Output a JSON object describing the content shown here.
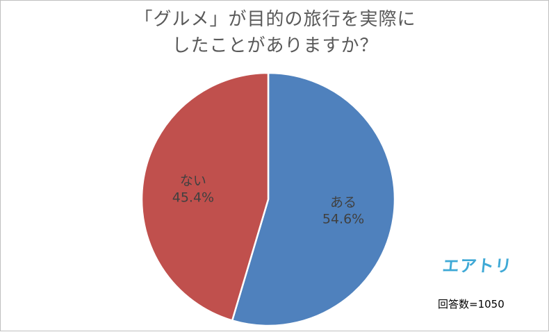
{
  "chart_data": {
    "type": "pie",
    "title_lines": [
      "「グルメ」が目的の旅行を実際に",
      "したことがありますか？"
    ],
    "slices": [
      {
        "name": "ある",
        "value": 54.6,
        "label": "54.6%",
        "color": "#4f81bd"
      },
      {
        "name": "ない",
        "value": 45.4,
        "label": "45.4%",
        "color": "#c0504d"
      }
    ],
    "start_angle_deg": 0,
    "direction": "clockwise",
    "slice_border_color": "#ffffff",
    "legend": "none",
    "sample_size_text": "回答数=1050"
  },
  "brand": {
    "logo_text": "エアトリ",
    "color": "#3fa9d6"
  }
}
